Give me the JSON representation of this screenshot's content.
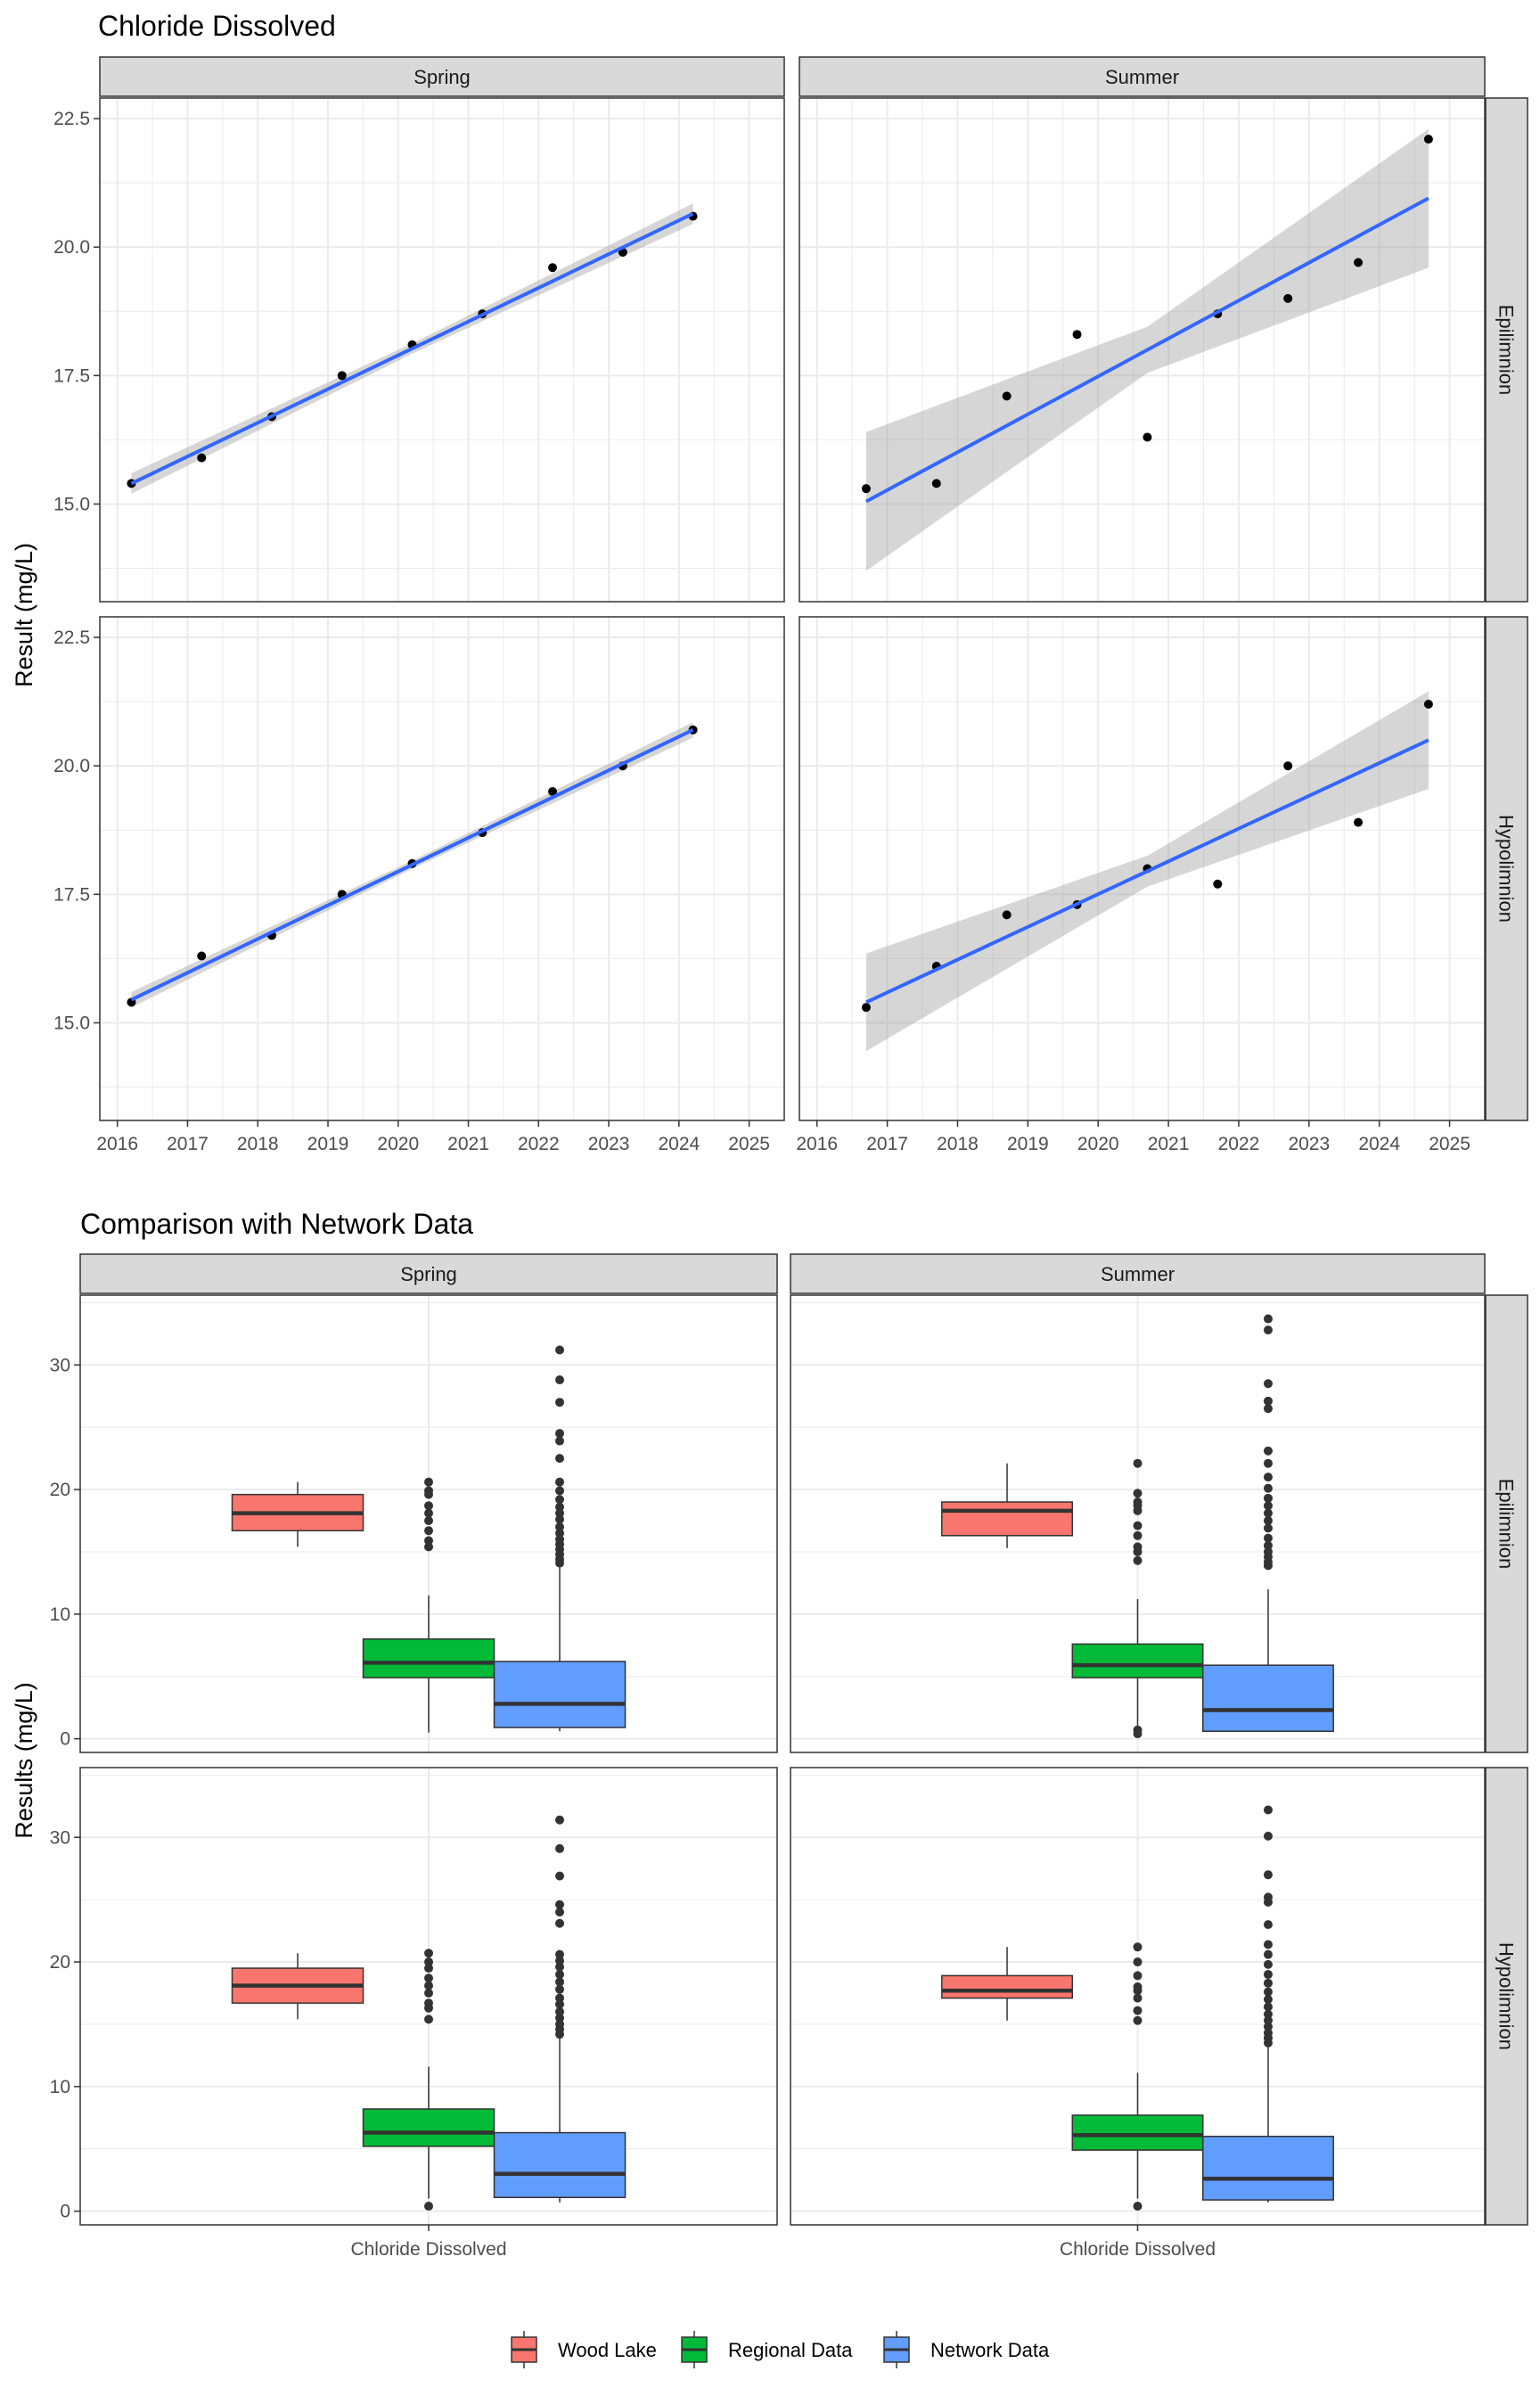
{
  "colors": {
    "smooth_line": "#3366ff",
    "ribbon": "#999999",
    "point": "#000000",
    "wood_lake": "#f8766d",
    "regional": "#00ba38",
    "network": "#619cff",
    "strip_bg": "#d9d9d9",
    "grid": "#ebebeb"
  },
  "chart_data": [
    {
      "type": "scatter",
      "title": "Chloride Dissolved",
      "ylabel": "Result (mg/L)",
      "xlabel": "",
      "columns": [
        "Spring",
        "Summer"
      ],
      "rows": [
        "Epilimnion",
        "Hypolimnion"
      ],
      "xlim": [
        2015.75,
        2025.5
      ],
      "ylim": [
        13.1,
        22.9
      ],
      "xticks": [
        "2016",
        "2017",
        "2018",
        "2019",
        "2020",
        "2021",
        "2022",
        "2023",
        "2024",
        "2025"
      ],
      "yticks": [
        "15.0",
        "17.5",
        "20.0",
        "22.5"
      ],
      "smoothing": "linear fit (blue) with 95% confidence band (grey)",
      "panels": [
        {
          "column": "Spring",
          "row": "Epilimnion",
          "x": [
            2016.2,
            2017.2,
            2018.2,
            2019.2,
            2020.2,
            2021.2,
            2022.2,
            2023.2,
            2024.2
          ],
          "y": [
            15.4,
            15.9,
            16.7,
            17.5,
            18.1,
            18.7,
            19.6,
            19.9,
            20.6
          ],
          "fit": [
            15.4,
            20.65
          ],
          "ci_half_width": [
            0.2,
            0.1,
            0.2
          ]
        },
        {
          "column": "Summer",
          "row": "Epilimnion",
          "x": [
            2016.7,
            2017.7,
            2018.7,
            2019.7,
            2020.7,
            2021.7,
            2022.7,
            2023.7,
            2024.7
          ],
          "y": [
            15.3,
            15.4,
            17.1,
            18.3,
            16.3,
            18.7,
            19.0,
            19.7,
            22.1
          ],
          "fit": [
            15.05,
            20.95
          ],
          "ci_half_width": [
            1.35,
            0.45,
            1.35
          ]
        },
        {
          "column": "Spring",
          "row": "Hypolimnion",
          "x": [
            2016.2,
            2017.2,
            2018.2,
            2019.2,
            2020.2,
            2021.2,
            2022.2,
            2023.2,
            2024.2
          ],
          "y": [
            15.4,
            16.3,
            16.7,
            17.5,
            18.1,
            18.7,
            19.5,
            20.0,
            20.7
          ],
          "fit": [
            15.45,
            20.7
          ],
          "ci_half_width": [
            0.15,
            0.08,
            0.15
          ]
        },
        {
          "column": "Summer",
          "row": "Hypolimnion",
          "x": [
            2016.7,
            2017.7,
            2018.7,
            2019.7,
            2020.7,
            2021.7,
            2022.7,
            2023.7,
            2024.7
          ],
          "y": [
            15.3,
            16.1,
            17.1,
            17.3,
            18.0,
            17.7,
            20.0,
            18.9,
            21.2
          ],
          "fit": [
            15.4,
            20.5
          ],
          "ci_half_width": [
            0.95,
            0.3,
            0.95
          ]
        }
      ]
    },
    {
      "type": "box",
      "title": "Comparison with Network Data",
      "ylabel": "Results (mg/L)",
      "xlabel": "",
      "category": "Chloride Dissolved",
      "columns": [
        "Spring",
        "Summer"
      ],
      "rows": [
        "Epilimnion",
        "Hypolimnion"
      ],
      "ylim": [
        -1.1,
        35.6
      ],
      "yticks": [
        "0",
        "10",
        "20",
        "30"
      ],
      "series_names": [
        "Wood Lake",
        "Regional Data",
        "Network Data"
      ],
      "panels": [
        {
          "column": "Spring",
          "row": "Epilimnion",
          "boxes": [
            {
              "min": 15.4,
              "q1": 16.7,
              "median": 18.1,
              "q3": 19.6,
              "max": 20.6,
              "outliers": []
            },
            {
              "min": 0.5,
              "q1": 4.9,
              "median": 6.1,
              "q3": 8.0,
              "max": 11.5,
              "outliers": [
                15.4,
                15.9,
                16.7,
                17.5,
                18.1,
                18.7,
                19.6,
                19.9,
                20.6
              ]
            },
            {
              "min": 0.6,
              "q1": 0.9,
              "median": 2.8,
              "q3": 6.2,
              "max": 13.8,
              "outliers": [
                14.1,
                14.4,
                14.8,
                15.2,
                15.6,
                16.0,
                16.5,
                17.0,
                17.6,
                18.1,
                18.6,
                19.2,
                19.9,
                20.6,
                22.5,
                23.9,
                24.5,
                27.0,
                28.8,
                31.2
              ]
            }
          ]
        },
        {
          "column": "Summer",
          "row": "Epilimnion",
          "boxes": [
            {
              "min": 15.3,
              "q1": 16.3,
              "median": 18.3,
              "q3": 19.0,
              "max": 22.1,
              "outliers": []
            },
            {
              "min": 1.0,
              "q1": 4.9,
              "median": 5.9,
              "q3": 7.6,
              "max": 11.2,
              "outliers": [
                0.4,
                0.7,
                14.3,
                15.0,
                15.4,
                16.3,
                17.1,
                18.3,
                18.7,
                19.0,
                19.7,
                22.1
              ]
            },
            {
              "min": 0.6,
              "q1": 0.6,
              "median": 2.3,
              "q3": 5.9,
              "max": 12.0,
              "outliers": [
                13.9,
                14.2,
                14.6,
                15.0,
                15.5,
                16.1,
                16.9,
                17.5,
                18.1,
                18.7,
                19.3,
                20.1,
                21.0,
                22.1,
                23.1,
                26.5,
                27.1,
                28.5,
                32.8,
                33.7
              ]
            }
          ]
        },
        {
          "column": "Spring",
          "row": "Hypolimnion",
          "boxes": [
            {
              "min": 15.4,
              "q1": 16.7,
              "median": 18.1,
              "q3": 19.5,
              "max": 20.7,
              "outliers": []
            },
            {
              "min": 1.0,
              "q1": 5.2,
              "median": 6.3,
              "q3": 8.2,
              "max": 11.6,
              "outliers": [
                0.4,
                15.4,
                16.3,
                16.7,
                17.5,
                18.1,
                18.7,
                19.5,
                20.0,
                20.7
              ]
            },
            {
              "min": 0.7,
              "q1": 1.1,
              "median": 3.0,
              "q3": 6.3,
              "max": 13.9,
              "outliers": [
                14.2,
                14.6,
                15.0,
                15.5,
                16.0,
                16.6,
                17.1,
                17.8,
                18.4,
                19.0,
                19.6,
                20.1,
                20.6,
                23.1,
                24.0,
                24.6,
                26.9,
                29.1,
                31.4
              ]
            }
          ]
        },
        {
          "column": "Summer",
          "row": "Hypolimnion",
          "boxes": [
            {
              "min": 15.3,
              "q1": 17.1,
              "median": 17.7,
              "q3": 18.9,
              "max": 21.2,
              "outliers": []
            },
            {
              "min": 1.0,
              "q1": 4.9,
              "median": 6.1,
              "q3": 7.7,
              "max": 11.1,
              "outliers": [
                0.4,
                15.3,
                16.1,
                17.1,
                17.7,
                18.0,
                18.9,
                20.0,
                21.2
              ]
            },
            {
              "min": 0.7,
              "q1": 0.9,
              "median": 2.6,
              "q3": 6.0,
              "max": 13.2,
              "outliers": [
                13.5,
                13.9,
                14.3,
                14.8,
                15.3,
                15.8,
                16.4,
                17.0,
                17.6,
                18.3,
                19.0,
                19.8,
                20.6,
                21.4,
                23.0,
                24.8,
                25.2,
                27.0,
                30.1,
                32.2
              ]
            }
          ]
        }
      ]
    }
  ]
}
